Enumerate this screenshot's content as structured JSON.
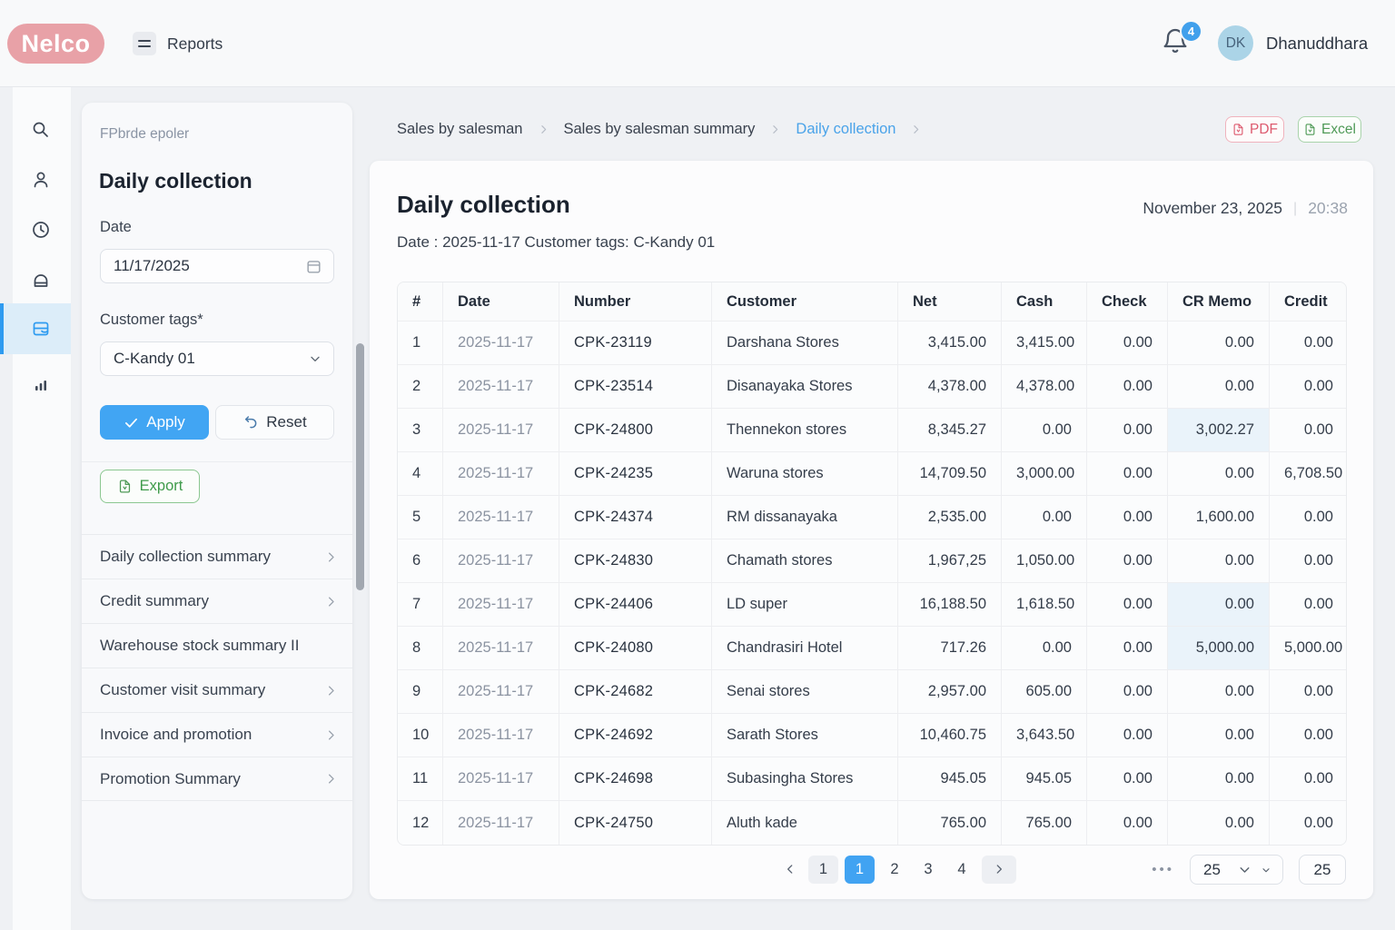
{
  "header": {
    "logo": "Nelco",
    "nav_title": "Reports",
    "notification_count": "4",
    "avatar_initials": "DK",
    "user_name": "Dhanuddhara"
  },
  "sidebar": {
    "icons": [
      {
        "name": "search",
        "active": false
      },
      {
        "name": "user",
        "active": false
      },
      {
        "name": "clock",
        "active": false
      },
      {
        "name": "bag",
        "active": false
      },
      {
        "name": "drawer",
        "active": true
      },
      {
        "name": "bar-chart",
        "active": false
      }
    ]
  },
  "filter_panel": {
    "subtitle": "FPbrde epoler",
    "title": "Daily collection",
    "date_label": "Date",
    "date_value": "11/17/2025",
    "tags_label": "Customer tags*",
    "tags_value": "C-Kandy 01",
    "apply_label": "Apply",
    "reset_label": "Reset",
    "export_label": "Export",
    "menu": [
      {
        "label": "Daily collection summary",
        "chevron": true
      },
      {
        "label": "Credit summary",
        "chevron": true
      },
      {
        "label": "Warehouse stock summary II",
        "chevron": false
      },
      {
        "label": "Customer visit summary",
        "chevron": true
      },
      {
        "label": "Invoice and promotion",
        "chevron": true
      },
      {
        "label": "Promotion Summary",
        "chevron": true
      }
    ]
  },
  "breadcrumb": {
    "items": [
      {
        "label": "Sales by salesman",
        "active": false
      },
      {
        "label": "Sales by salesman summary",
        "active": false
      },
      {
        "label": "Daily collection",
        "active": true
      }
    ]
  },
  "export_buttons": {
    "pdf": "PDF",
    "excel": "Excel"
  },
  "report": {
    "title": "Daily collection",
    "date": "November 23, 2025",
    "time": "20:38",
    "filters_line": "Date : 2025-11-17 Customer tags: C-Kandy 01"
  },
  "table": {
    "columns": [
      "#",
      "Date",
      "Number",
      "Customer",
      "Net",
      "Cash",
      "Check",
      "CR Memo",
      "Credit"
    ],
    "rows": [
      {
        "cells": [
          "1",
          "2025-11-17",
          "CPK-23119",
          "Darshana Stores",
          "3,415.00",
          "3,415.00",
          "0.00",
          "0.00",
          "0.00"
        ],
        "cr_memo_highlight": false
      },
      {
        "cells": [
          "2",
          "2025-11-17",
          "CPK-23514",
          "Disanayaka Stores",
          "4,378.00",
          "4,378.00",
          "0.00",
          "0.00",
          "0.00"
        ],
        "cr_memo_highlight": false
      },
      {
        "cells": [
          "3",
          "2025-11-17",
          "CPK-24800",
          "Thennekon stores",
          "8,345.27",
          "0.00",
          "0.00",
          "3,002.27",
          "0.00"
        ],
        "cr_memo_highlight": true
      },
      {
        "cells": [
          "4",
          "2025-11-17",
          "CPK-24235",
          "Waruna stores",
          "14,709.50",
          "3,000.00",
          "0.00",
          "0.00",
          "6,708.50"
        ],
        "cr_memo_highlight": false
      },
      {
        "cells": [
          "5",
          "2025-11-17",
          "CPK-24374",
          "RM dissanayaka",
          "2,535.00",
          "0.00",
          "0.00",
          "1,600.00",
          "0.00"
        ],
        "cr_memo_highlight": false
      },
      {
        "cells": [
          "6",
          "2025-11-17",
          "CPK-24830",
          "Chamath stores",
          "1,967,25",
          "1,050.00",
          "0.00",
          "0.00",
          "0.00"
        ],
        "cr_memo_highlight": false
      },
      {
        "cells": [
          "7",
          "2025-11-17",
          "CPK-24406",
          "LD super",
          "16,188.50",
          "1,618.50",
          "0.00",
          "0.00",
          "0.00"
        ],
        "cr_memo_highlight": true
      },
      {
        "cells": [
          "8",
          "2025-11-17",
          "CPK-24080",
          "Chandrasiri Hotel",
          "717.26",
          "0.00",
          "0.00",
          "5,000.00",
          "5,000.00"
        ],
        "cr_memo_highlight": true
      },
      {
        "cells": [
          "9",
          "2025-11-17",
          "CPK-24682",
          "Senai stores",
          "2,957.00",
          "605.00",
          "0.00",
          "0.00",
          "0.00"
        ],
        "cr_memo_highlight": false
      },
      {
        "cells": [
          "10",
          "2025-11-17",
          "CPK-24692",
          "Sarath Stores",
          "10,460.75",
          "3,643.50",
          "0.00",
          "0.00",
          "0.00"
        ],
        "cr_memo_highlight": false
      },
      {
        "cells": [
          "11",
          "2025-11-17",
          "CPK-24698",
          "Subasingha Stores",
          "945.05",
          "945.05",
          "0.00",
          "0.00",
          "0.00"
        ],
        "cr_memo_highlight": false
      },
      {
        "cells": [
          "12",
          "2025-11-17",
          "CPK-24750",
          "Aluth kade",
          "765.00",
          "765.00",
          "0.00",
          "0.00",
          "0.00"
        ],
        "cr_memo_highlight": false
      }
    ]
  },
  "pagination": {
    "leading_page": "1",
    "active_page": "1",
    "pages": [
      "2",
      "3",
      "4"
    ],
    "ellipsis": "•••",
    "page_size": "25",
    "jump_value": "25"
  },
  "colors": {
    "accent_blue": "#41a5f3",
    "logo_pink": "#e8a1a7",
    "export_green": "#4f9a57",
    "pdf_red": "#dd5a6e",
    "active_rail_bg": "#dcedf9",
    "cell_highlight": "#eaf3fa"
  }
}
